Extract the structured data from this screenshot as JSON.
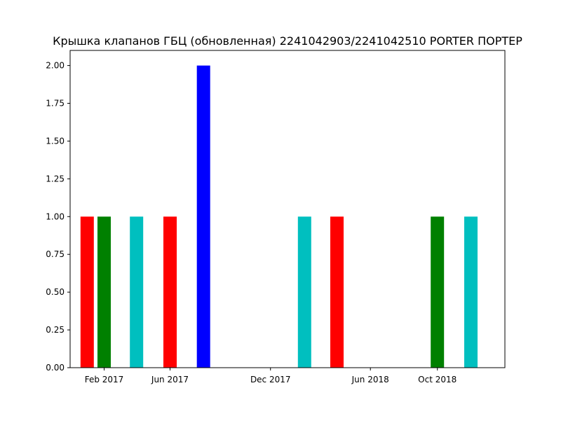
{
  "chart_data": {
    "type": "bar",
    "title": "Крышка клапанов ГБЦ (обновленная) 2241042903/2241042510 PORTER ПОРТЕР",
    "xlabel": "",
    "ylabel": "",
    "ylim": [
      0,
      2.1
    ],
    "xlim": [
      "2016-12-01",
      "2019-02-01"
    ],
    "yticks": [
      0.0,
      0.25,
      0.5,
      0.75,
      1.0,
      1.25,
      1.5,
      1.75,
      2.0
    ],
    "ytick_labels": [
      "0.00",
      "0.25",
      "0.50",
      "0.75",
      "1.00",
      "1.25",
      "1.50",
      "1.75",
      "2.00"
    ],
    "xticks": [
      {
        "date": "2017-02-01",
        "label": "Feb 2017"
      },
      {
        "date": "2017-06-01",
        "label": "Jun 2017"
      },
      {
        "date": "2017-12-01",
        "label": "Dec 2017"
      },
      {
        "date": "2018-06-01",
        "label": "Jun 2018"
      },
      {
        "date": "2018-10-01",
        "label": "Oct 2018"
      }
    ],
    "grid": false,
    "bars": [
      {
        "date": "2017-01-01",
        "value": 1,
        "color": "#ff0000"
      },
      {
        "date": "2017-02-01",
        "value": 1,
        "color": "#008000"
      },
      {
        "date": "2017-04-01",
        "value": 1,
        "color": "#00bfbf"
      },
      {
        "date": "2017-06-01",
        "value": 1,
        "color": "#ff0000"
      },
      {
        "date": "2017-08-01",
        "value": 2,
        "color": "#0000ff"
      },
      {
        "date": "2018-02-01",
        "value": 1,
        "color": "#00bfbf"
      },
      {
        "date": "2018-04-01",
        "value": 1,
        "color": "#ff0000"
      },
      {
        "date": "2018-10-01",
        "value": 1,
        "color": "#008000"
      },
      {
        "date": "2018-12-01",
        "value": 1,
        "color": "#00bfbf"
      }
    ]
  }
}
